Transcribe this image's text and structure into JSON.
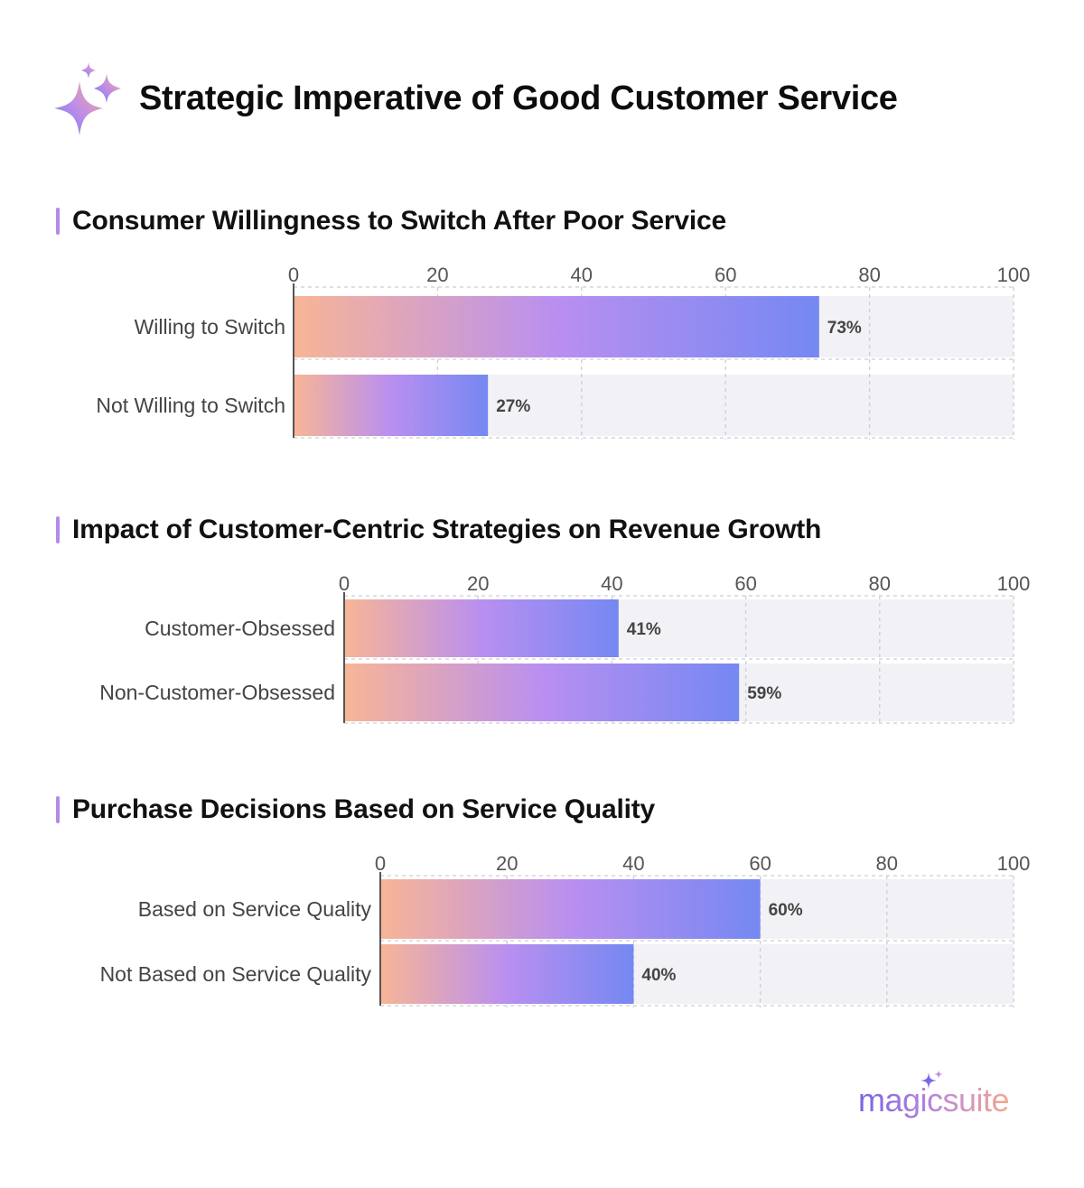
{
  "page": {
    "title": "Strategic Imperative of Good Customer Service",
    "brand": "magicsuite"
  },
  "colors": {
    "bar_gradient_start": "#f8b596",
    "bar_gradient_mid": "#b98ff0",
    "bar_gradient_end": "#7588f2",
    "track": "#f2f2f6",
    "accent": "#b58ae8"
  },
  "icons": {
    "title_icon": "sparkle-icon",
    "brand_icon": "sparkle-icon"
  },
  "chart_data": [
    {
      "type": "bar",
      "orientation": "horizontal",
      "title": "Consumer Willingness to Switch After Poor Service",
      "categories": [
        "Willing to Switch",
        "Not Willing to Switch"
      ],
      "values": [
        73,
        27
      ],
      "value_labels": [
        "73%",
        "27%"
      ],
      "xlim": [
        0,
        100
      ],
      "ticks": [
        0,
        20,
        40,
        60,
        80,
        100
      ],
      "tick_position": "top",
      "grid": true
    },
    {
      "type": "bar",
      "orientation": "horizontal",
      "title": "Impact of Customer-Centric Strategies on Revenue Growth",
      "categories": [
        "Customer-Obsessed",
        "Non-Customer-Obsessed"
      ],
      "values": [
        41,
        59
      ],
      "value_labels": [
        "41%",
        "59%"
      ],
      "xlim": [
        0,
        100
      ],
      "ticks": [
        0,
        20,
        40,
        60,
        80,
        100
      ],
      "tick_position": "top",
      "grid": true
    },
    {
      "type": "bar",
      "orientation": "horizontal",
      "title": "Purchase Decisions Based on Service Quality",
      "categories": [
        "Based on Service Quality",
        "Not Based on Service Quality"
      ],
      "values": [
        60,
        40
      ],
      "value_labels": [
        "60%",
        "40%"
      ],
      "xlim": [
        0,
        100
      ],
      "ticks": [
        0,
        20,
        40,
        60,
        80,
        100
      ],
      "tick_position": "top",
      "grid": true
    }
  ]
}
